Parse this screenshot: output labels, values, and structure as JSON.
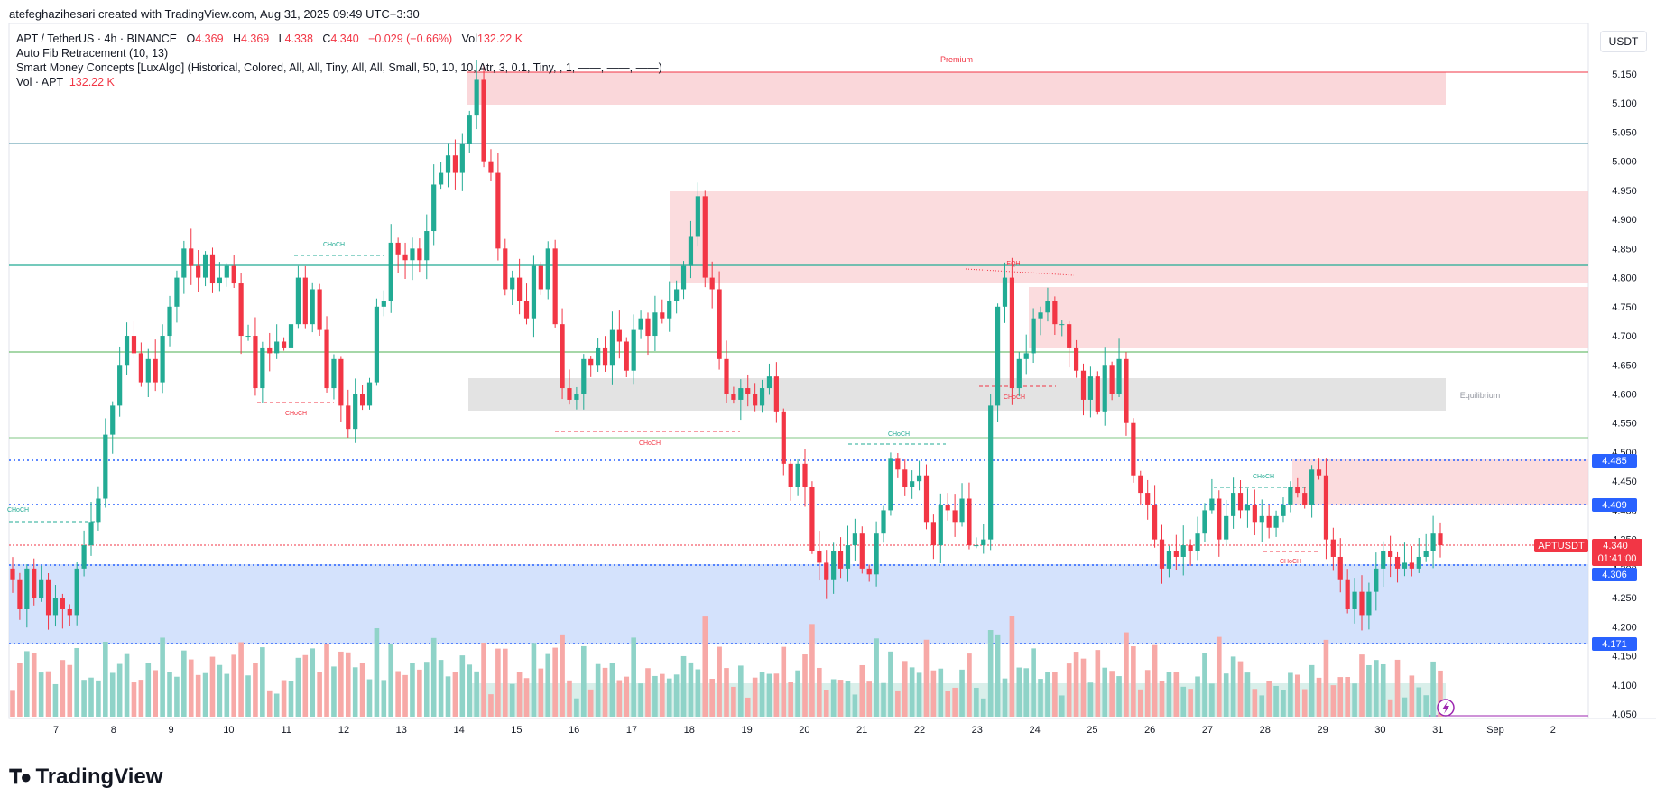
{
  "header": {
    "created_by": "atefeghazihesari created with TradingView.com, Aug 31, 2025 09:49 UTC+3:30"
  },
  "legend": {
    "symbol": "APT / TetherUS · 4h · BINANCE",
    "o_label": "O",
    "o_value": "4.369",
    "h_label": "H",
    "h_value": "4.369",
    "l_label": "L",
    "l_value": "4.338",
    "c_label": "C",
    "c_value": "4.340",
    "change": "−0.029 (−0.66%)",
    "vol_label": "Vol",
    "vol_value": "132.22 K",
    "indicator1": "Auto Fib Retracement (10, 13)",
    "indicator2": "Smart Money Concepts [LuxAlgo] (Historical, Colored, All, All, Tiny, All, All, Small, 50, 10, 10, Atr, 3, 0.1, Tiny, , 1, ——, ——, ——)",
    "indicator3_label": "Vol · APT",
    "indicator3_value": "132.22 K"
  },
  "currency_button": "USDT",
  "logo_text": "TradingView",
  "colors": {
    "up": "#22ab94",
    "down": "#f23645",
    "up_vol": "#8fd3c8",
    "down_vol": "#f7a9a7",
    "premium_zone": "#f9d0d3",
    "discount_zone": "#c9dbfb",
    "equilibrium_zone": "#e0e0e0",
    "fib_blue": "#2962ff"
  },
  "zone_labels": {
    "premium": "Premium",
    "equilibrium": "Equilibrium"
  },
  "structure_labels": [
    "CHoCH",
    "CHoCH",
    "CHoCH",
    "CHoCH",
    "CHoCH",
    "CHoCH",
    "CHoCH",
    "CHoCH",
    "EQH"
  ],
  "price_tags": {
    "level_1": "4.485",
    "level_2": "4.409",
    "symbol_tag": "APTUSDT",
    "last_price": "4.340",
    "countdown": "01:41:00",
    "level_3": "4.306",
    "level_4": "4.171"
  },
  "chart_data": {
    "type": "candlestick",
    "title": "APT / TetherUS · 4h · BINANCE",
    "x_ticks": [
      "7",
      "8",
      "9",
      "10",
      "11",
      "12",
      "13",
      "14",
      "15",
      "16",
      "17",
      "18",
      "19",
      "20",
      "21",
      "22",
      "23",
      "24",
      "25",
      "26",
      "27",
      "28",
      "29",
      "30",
      "31",
      "Sep",
      "2"
    ],
    "y_ticks": [
      "5.150",
      "5.100",
      "5.050",
      "5.000",
      "4.950",
      "4.900",
      "4.850",
      "4.800",
      "4.750",
      "4.700",
      "4.650",
      "4.600",
      "4.550",
      "4.500",
      "4.450",
      "4.400",
      "4.350",
      "4.300",
      "4.250",
      "4.200",
      "4.150",
      "4.100",
      "4.050"
    ],
    "ylim": [
      4.05,
      5.15
    ],
    "fib_levels": [
      4.485,
      4.409,
      4.306,
      4.171
    ],
    "horizontal_lines": [
      5.03,
      4.82,
      4.672,
      4.525
    ],
    "last_price": 4.34,
    "grid": false,
    "candles_close": [
      4.28,
      4.23,
      4.3,
      4.25,
      4.28,
      4.22,
      4.25,
      4.23,
      4.22,
      4.3,
      4.34,
      4.38,
      4.42,
      4.53,
      4.58,
      4.65,
      4.7,
      4.67,
      4.62,
      4.66,
      4.62,
      4.7,
      4.75,
      4.8,
      4.85,
      4.82,
      4.8,
      4.84,
      4.79,
      4.8,
      4.82,
      4.79,
      4.7,
      4.7,
      4.61,
      4.68,
      4.67,
      4.69,
      4.68,
      4.72,
      4.8,
      4.72,
      4.78,
      4.71,
      4.61,
      4.66,
      4.58,
      4.54,
      4.6,
      4.58,
      4.62,
      4.75,
      4.76,
      4.86,
      4.84,
      4.83,
      4.85,
      4.83,
      4.88,
      4.96,
      4.98,
      5.01,
      4.98,
      5.03,
      5.08,
      5.14,
      5.0,
      4.98,
      4.85,
      4.78,
      4.8,
      4.76,
      4.73,
      4.82,
      4.78,
      4.85,
      4.72,
      4.61,
      4.59,
      4.6,
      4.66,
      4.65,
      4.68,
      4.65,
      4.71,
      4.69,
      4.64,
      4.71,
      4.73,
      4.7,
      4.74,
      4.73,
      4.76,
      4.78,
      4.82,
      4.87,
      4.94,
      4.8,
      4.78,
      4.66,
      4.6,
      4.59,
      4.61,
      4.6,
      4.58,
      4.61,
      4.63,
      4.57,
      4.48,
      4.44,
      4.48,
      4.44,
      4.33,
      4.31,
      4.28,
      4.33,
      4.3,
      4.34,
      4.36,
      4.3,
      4.29,
      4.36,
      4.4,
      4.49,
      4.47,
      4.44,
      4.45,
      4.46,
      4.38,
      4.34,
      4.41,
      4.4,
      4.38,
      4.42,
      4.34,
      4.34,
      4.35,
      4.58,
      4.75,
      4.8,
      4.61,
      4.66,
      4.67,
      4.73,
      4.74,
      4.76,
      4.72,
      4.72,
      4.68,
      4.64,
      4.59,
      4.63,
      4.57,
      4.65,
      4.6,
      4.66,
      4.55,
      4.46,
      4.43,
      4.41,
      4.35,
      4.3,
      4.33,
      4.32,
      4.34,
      4.33,
      4.36,
      4.4,
      4.42,
      4.35,
      4.39,
      4.43,
      4.4,
      4.41,
      4.38,
      4.39,
      4.37,
      4.39,
      4.41,
      4.44,
      4.43,
      4.41,
      4.47,
      4.46,
      4.35,
      4.32,
      4.28,
      4.23,
      4.26,
      4.22,
      4.26,
      4.3,
      4.33,
      4.32,
      4.3,
      4.31,
      4.3,
      4.32,
      4.33,
      4.36,
      4.34
    ]
  }
}
